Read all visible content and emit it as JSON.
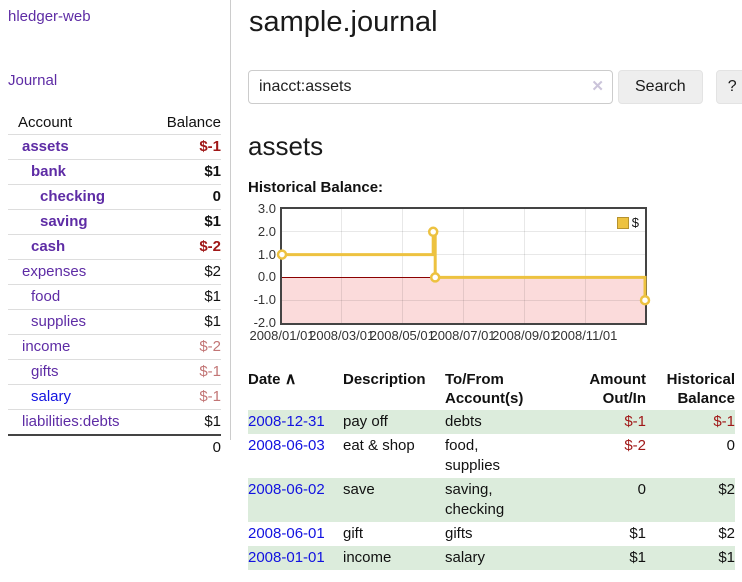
{
  "app": {
    "brand": "hledger-web"
  },
  "sidebar": {
    "nav": {
      "journal": "Journal"
    },
    "accounts": {
      "col_account": "Account",
      "col_balance": "Balance",
      "rows": [
        {
          "name": "assets",
          "depth": 1,
          "bold": true,
          "balance": "$-1",
          "tone": "neg-strong"
        },
        {
          "name": "bank",
          "depth": 2,
          "bold": true,
          "balance": "$1",
          "tone": "pos"
        },
        {
          "name": "checking",
          "depth": 3,
          "bold": true,
          "balance": "0",
          "tone": "pos"
        },
        {
          "name": "saving",
          "depth": 3,
          "bold": true,
          "balance": "$1",
          "tone": "pos"
        },
        {
          "name": "cash",
          "depth": 2,
          "bold": true,
          "balance": "$-2",
          "tone": "neg-strong"
        },
        {
          "name": "expenses",
          "depth": 1,
          "bold": false,
          "balance": "$2",
          "tone": "pos"
        },
        {
          "name": "food",
          "depth": 2,
          "bold": false,
          "balance": "$1",
          "tone": "pos"
        },
        {
          "name": "supplies",
          "depth": 2,
          "bold": false,
          "balance": "$1",
          "tone": "pos"
        },
        {
          "name": "income",
          "depth": 1,
          "bold": false,
          "balance": "$-2",
          "tone": "neg-soft"
        },
        {
          "name": "gifts",
          "depth": 2,
          "bold": false,
          "balance": "$-1",
          "tone": "neg-soft"
        },
        {
          "name": "salary",
          "depth": 2,
          "bold": false,
          "balance": "$-1",
          "tone": "neg-soft",
          "link": "blue"
        },
        {
          "name": "liabilities:debts",
          "depth": 1,
          "bold": false,
          "balance": "$1",
          "tone": "pos"
        }
      ],
      "total": "0"
    }
  },
  "main": {
    "title": "sample.journal",
    "search": {
      "value": "inacct:assets",
      "clear_icon": "✕",
      "search_label": "Search",
      "help_label": "?"
    },
    "heading": "assets",
    "chart_title": "Historical Balance:"
  },
  "chart_data": {
    "type": "line",
    "title": "Historical Balance",
    "legend": [
      {
        "label": "$",
        "color": "#edc240"
      }
    ],
    "x_range_days": [
      0,
      365
    ],
    "ylim": [
      -2,
      3
    ],
    "grid": true,
    "legend_position": "top-right",
    "y_ticks": [
      {
        "v": 3,
        "label": "3.0"
      },
      {
        "v": 2,
        "label": "2.0"
      },
      {
        "v": 1,
        "label": "1.0"
      },
      {
        "v": 0,
        "label": "0.0"
      },
      {
        "v": -1,
        "label": "-1.0"
      },
      {
        "v": -2,
        "label": "-2.0"
      }
    ],
    "x_ticks": [
      {
        "d": 0,
        "label": "2008/01/01"
      },
      {
        "d": 60,
        "label": "2008/03/01"
      },
      {
        "d": 121,
        "label": "2008/05/01"
      },
      {
        "d": 182,
        "label": "2008/07/01"
      },
      {
        "d": 244,
        "label": "2008/09/01"
      },
      {
        "d": 305,
        "label": "2008/11/01"
      }
    ],
    "series": [
      {
        "name": "$",
        "color": "#edc240",
        "points": [
          {
            "date": "2008-01-01",
            "value": 1
          },
          {
            "date": "2008-06-01",
            "value": 2
          },
          {
            "date": "2008-06-02",
            "value": 2
          },
          {
            "date": "2008-06-03",
            "value": 0
          },
          {
            "date": "2008-12-31",
            "value": -1
          }
        ],
        "step_path": [
          [
            0,
            1
          ],
          [
            152,
            1
          ],
          [
            152,
            2
          ],
          [
            154,
            2
          ],
          [
            154,
            0
          ],
          [
            365,
            0
          ],
          [
            365,
            -1
          ]
        ],
        "markers": [
          [
            0,
            1
          ],
          [
            152,
            2
          ],
          [
            154,
            0
          ],
          [
            365,
            -1
          ]
        ]
      }
    ],
    "negative_region_color": "#fbdbdb",
    "zero_line_color": "#8b0000"
  },
  "register": {
    "headers": {
      "date": "Date",
      "date_sort_icon": "∧",
      "description": "Description",
      "accounts_l1": "To/From",
      "accounts_l2": "Account(s)",
      "amount_l1": "Amount",
      "amount_l2": "Out/In",
      "balance_l1": "Historical",
      "balance_l2": "Balance"
    },
    "rows": [
      {
        "date": "2008-12-31",
        "description": "pay off",
        "accounts": "debts",
        "amount": "$-1",
        "amount_tone": "neg",
        "balance": "$-1",
        "balance_tone": "neg"
      },
      {
        "date": "2008-06-03",
        "description": "eat & shop",
        "accounts": "food, supplies",
        "amount": "$-2",
        "amount_tone": "neg",
        "balance": "0",
        "balance_tone": "pos"
      },
      {
        "date": "2008-06-02",
        "description": "save",
        "accounts": "saving, checking",
        "amount": "0",
        "amount_tone": "pos",
        "balance": "$2",
        "balance_tone": "pos"
      },
      {
        "date": "2008-06-01",
        "description": "gift",
        "accounts": "gifts",
        "amount": "$1",
        "amount_tone": "pos",
        "balance": "$2",
        "balance_tone": "pos"
      },
      {
        "date": "2008-01-01",
        "description": "income",
        "accounts": "salary",
        "amount": "$1",
        "amount_tone": "pos",
        "balance": "$1",
        "balance_tone": "pos"
      }
    ]
  },
  "colors": {
    "link_purple": "#5e2ca5",
    "link_blue": "#1212e0",
    "neg_strong": "#a01818",
    "neg_soft": "#c27575",
    "row_green": "#dcecdc",
    "accent_gold": "#edc240"
  }
}
